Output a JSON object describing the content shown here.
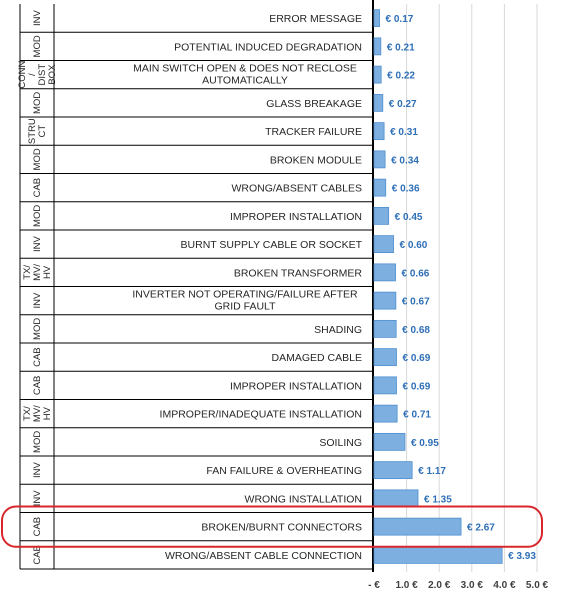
{
  "chart_data": {
    "type": "bar",
    "orientation": "horizontal",
    "categories": [
      "ERROR MESSAGE",
      "POTENTIAL INDUCED DEGRADATION",
      "MAIN SWITCH OPEN & DOES NOT RECLOSE AUTOMATICALLY",
      "GLASS BREAKAGE",
      "TRACKER FAILURE",
      "BROKEN MODULE",
      "WRONG/ABSENT CABLES",
      "IMPROPER INSTALLATION",
      "BURNT SUPPLY CABLE OR SOCKET",
      "BROKEN TRANSFORMER",
      "INVERTER NOT OPERATING/FAILURE AFTER GRID FAULT",
      "SHADING",
      "DAMAGED CABLE",
      "IMPROPER INSTALLATION",
      "IMPROPER/INADEQUATE  INSTALLATION",
      "SOILING",
      "FAN FAILURE & OVERHEATING",
      "WRONG INSTALLATION",
      "BROKEN/BURNT CONNECTORS",
      "WRONG/ABSENT CABLE CONNECTION"
    ],
    "groups": [
      "INV",
      "MOD",
      "CONN / DIST BOX",
      "MOD",
      "STRU CT",
      "MOD",
      "CAB",
      "MOD",
      "INV",
      "TX/ MV/ HV",
      "INV",
      "MOD",
      "CAB",
      "CAB",
      "TX/ MV/ HV",
      "MOD",
      "INV",
      "INV",
      "CAB",
      "CAB"
    ],
    "values": [
      0.17,
      0.21,
      0.22,
      0.27,
      0.31,
      0.34,
      0.36,
      0.45,
      0.6,
      0.66,
      0.67,
      0.68,
      0.69,
      0.69,
      0.71,
      0.95,
      1.17,
      1.35,
      2.67,
      3.93
    ],
    "value_labels": [
      "€ 0.17",
      "€ 0.21",
      "€ 0.22",
      "€ 0.27",
      "€ 0.31",
      "€ 0.34",
      "€ 0.36",
      "€ 0.45",
      "€ 0.60",
      "€ 0.66",
      "€ 0.67",
      "€ 0.68",
      "€ 0.69",
      "€ 0.69",
      "€ 0.71",
      "€ 0.95",
      "€ 1.17",
      "€ 1.35",
      "€ 2.67",
      "€ 3.93"
    ],
    "x_ticks": [
      0,
      1,
      2,
      3,
      4,
      5
    ],
    "x_tick_labels": [
      "- €",
      "1.0 €",
      "2.0 €",
      "3.0 €",
      "4.0 €",
      "5.0 €"
    ],
    "xlim": [
      0,
      5
    ],
    "highlighted_category_index": 18,
    "grid": true
  },
  "colors": {
    "bar_fill": "#7db0e0",
    "bar_stroke": "#4f8fcf",
    "value_label": "#2e6fb7",
    "highlight": "#d9262b",
    "grid": "#d9d9d9",
    "axis": "#000000"
  }
}
